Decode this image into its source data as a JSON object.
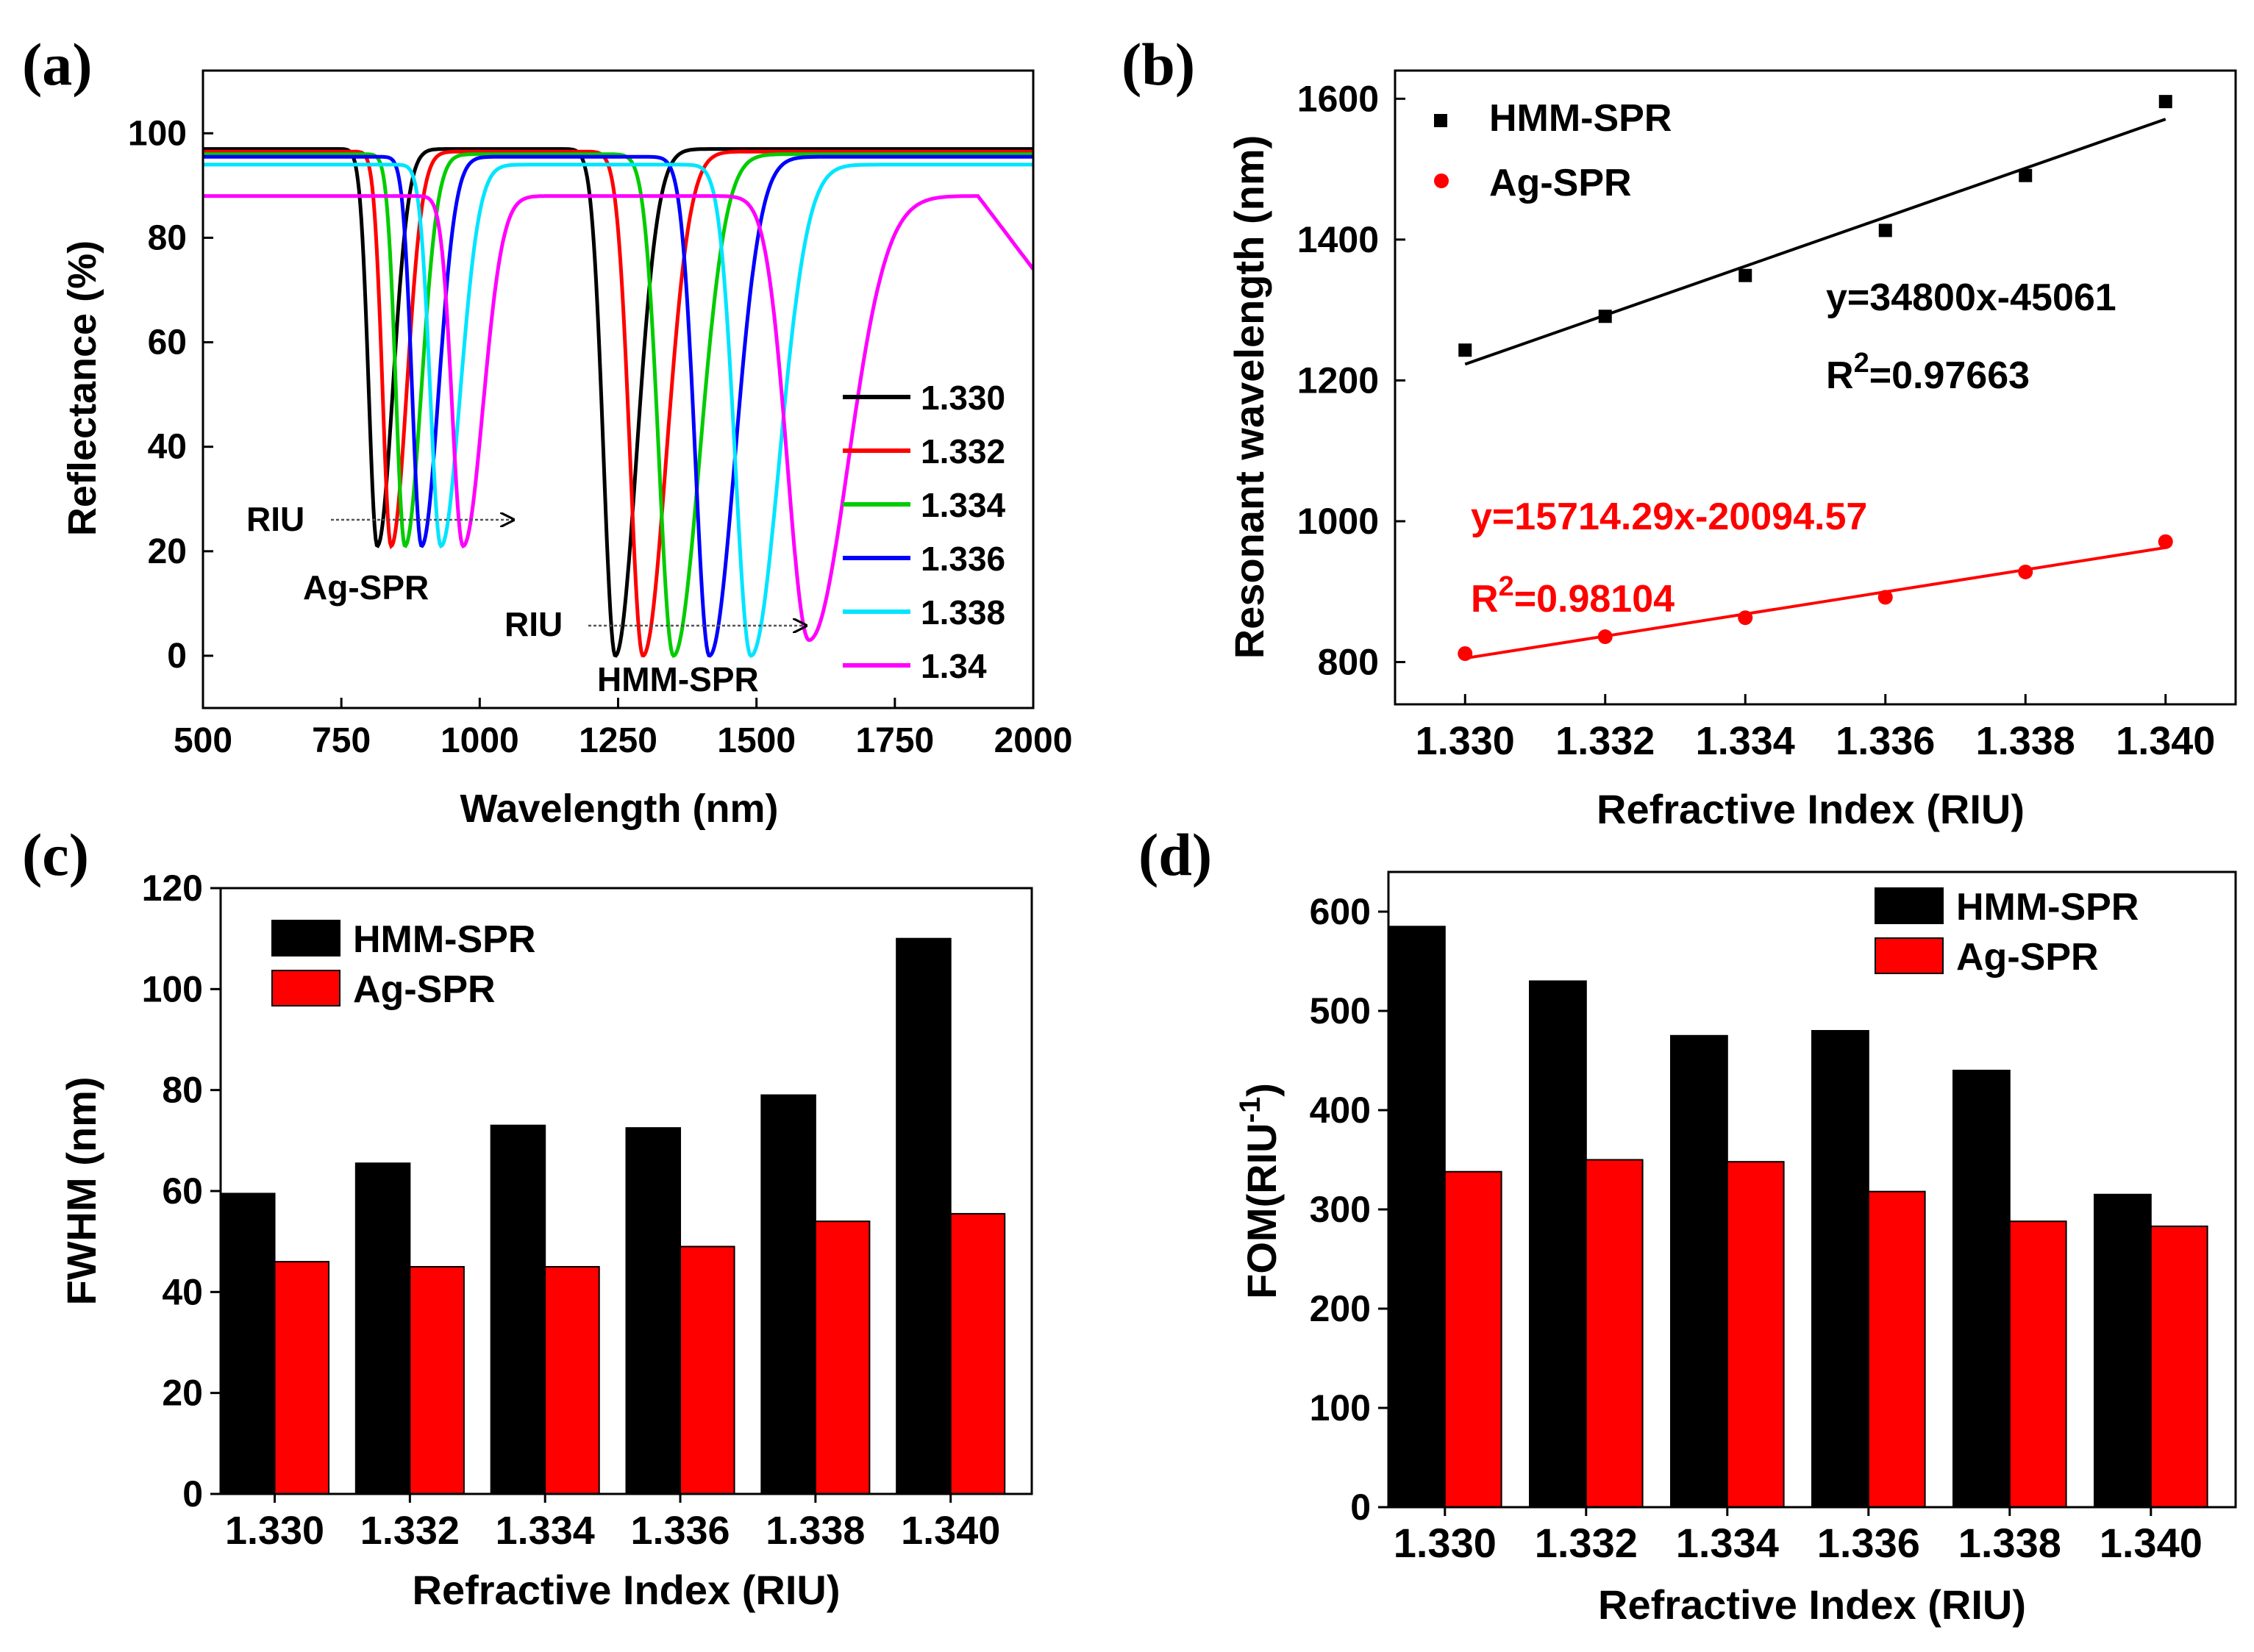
{
  "colors": {
    "black": "#000000",
    "red": "#ff0000",
    "green": "#00cc00",
    "blue": "#0000ff",
    "cyan": "#00e5ff",
    "magenta": "#ff00ff",
    "gray": "#555555"
  },
  "chart_data": [
    {
      "panel": "a",
      "panel_label": "(a)",
      "type": "line",
      "xlabel": "Wavelength (nm)",
      "ylabel": "Reflectance (%)",
      "xlim": [
        500,
        2000
      ],
      "ylim": [
        -10,
        112
      ],
      "xticks": [
        500,
        750,
        1000,
        1250,
        1500,
        1750,
        2000
      ],
      "yticks": [
        0,
        20,
        40,
        60,
        80,
        100
      ],
      "series": [
        {
          "name": "1.330",
          "color": "#000000",
          "dips": [
            {
              "center": 815,
              "depth": 21,
              "width": 22
            },
            {
              "center": 1245,
              "depth": 0,
              "width": 30
            }
          ],
          "baseline": 97
        },
        {
          "name": "1.332",
          "color": "#ff0000",
          "dips": [
            {
              "center": 840,
              "depth": 21,
              "width": 22
            },
            {
              "center": 1295,
              "depth": 0,
              "width": 33
            }
          ],
          "baseline": 96.5
        },
        {
          "name": "1.334",
          "color": "#00cc00",
          "dips": [
            {
              "center": 865,
              "depth": 21,
              "width": 23
            },
            {
              "center": 1350,
              "depth": 0,
              "width": 37
            }
          ],
          "baseline": 96
        },
        {
          "name": "1.336",
          "color": "#0000ff",
          "dips": [
            {
              "center": 895,
              "depth": 21,
              "width": 24
            },
            {
              "center": 1415,
              "depth": 0,
              "width": 36
            }
          ],
          "baseline": 95.5
        },
        {
          "name": "1.338",
          "color": "#00e5ff",
          "dips": [
            {
              "center": 930,
              "depth": 21,
              "width": 27
            },
            {
              "center": 1490,
              "depth": 0,
              "width": 40
            }
          ],
          "baseline": 94
        },
        {
          "name": "1.34",
          "color": "#ff00ff",
          "dips": [
            {
              "center": 970,
              "depth": 21,
              "width": 28
            },
            {
              "center": 1595,
              "depth": 3,
              "width": 55
            }
          ],
          "baseline": 88
        }
      ],
      "annotations": [
        {
          "text": "RIU",
          "at": [
            735,
            25
          ]
        },
        {
          "text": "Ag-SPR",
          "at": [
            990,
            12
          ]
        },
        {
          "text": "RIU",
          "at": [
            1195,
            5
          ]
        },
        {
          "text": "HMM-SPR",
          "at": [
            1470,
            -5
          ]
        }
      ]
    },
    {
      "panel": "b",
      "panel_label": "(b)",
      "type": "scatter",
      "xlabel": "Refractive Index (RIU)",
      "ylabel": "Resonant wavelength (nm)",
      "xlim": [
        1.329,
        1.341
      ],
      "ylim": [
        740,
        1640
      ],
      "xticks": [
        "1.330",
        "1.332",
        "1.334",
        "1.336",
        "1.338",
        "1.340"
      ],
      "yticks": [
        800,
        1000,
        1200,
        1400,
        1600
      ],
      "x": [
        1.33,
        1.332,
        1.334,
        1.336,
        1.338,
        1.34
      ],
      "series": [
        {
          "name": "HMM-SPR",
          "marker": "square",
          "color": "#000000",
          "values": [
            1243,
            1291,
            1349,
            1413,
            1491,
            1596
          ],
          "fit": {
            "slope": 34800,
            "intercept": -45061
          },
          "equation": "y=34800x-45061",
          "r2_prefix": "R",
          "r2_sup": "2",
          "r2_value": "=0.97663"
        },
        {
          "name": "Ag-SPR",
          "marker": "circle",
          "color": "#ff0000",
          "values": [
            812,
            836,
            863,
            892,
            928,
            971
          ],
          "fit": {
            "slope": 15714.29,
            "intercept": -20094.57
          },
          "equation": "y=15714.29x-20094.57",
          "r2_prefix": "R",
          "r2_sup": "2",
          "r2_value": "=0.98104"
        }
      ]
    },
    {
      "panel": "c",
      "panel_label": "(c)",
      "type": "bar",
      "xlabel": "Refractive Index (RIU)",
      "ylabel": "FWHM (nm)",
      "ylim": [
        0,
        120
      ],
      "yticks": [
        0,
        20,
        40,
        60,
        80,
        100,
        120
      ],
      "categories": [
        "1.330",
        "1.332",
        "1.334",
        "1.336",
        "1.338",
        "1.340"
      ],
      "series": [
        {
          "name": "HMM-SPR",
          "color": "#000000",
          "values": [
            59.5,
            65.5,
            73,
            72.5,
            79,
            110
          ]
        },
        {
          "name": "Ag-SPR",
          "color": "#ff0000",
          "values": [
            46,
            45,
            45,
            49,
            54,
            55.5
          ]
        }
      ]
    },
    {
      "panel": "d",
      "panel_label": "(d)",
      "type": "bar",
      "xlabel": "Refractive Index (RIU)",
      "ylabel_main": "FOM(RIU",
      "ylabel_sup": "-1",
      "ylabel_end": ")",
      "ylim": [
        0,
        640
      ],
      "yticks": [
        0,
        100,
        200,
        300,
        400,
        500,
        600
      ],
      "categories": [
        "1.330",
        "1.332",
        "1.334",
        "1.336",
        "1.338",
        "1.340"
      ],
      "series": [
        {
          "name": "HMM-SPR",
          "color": "#000000",
          "values": [
            585,
            530,
            475,
            480,
            440,
            315
          ]
        },
        {
          "name": "Ag-SPR",
          "color": "#ff0000",
          "values": [
            338,
            350,
            348,
            318,
            288,
            283
          ]
        }
      ]
    }
  ]
}
